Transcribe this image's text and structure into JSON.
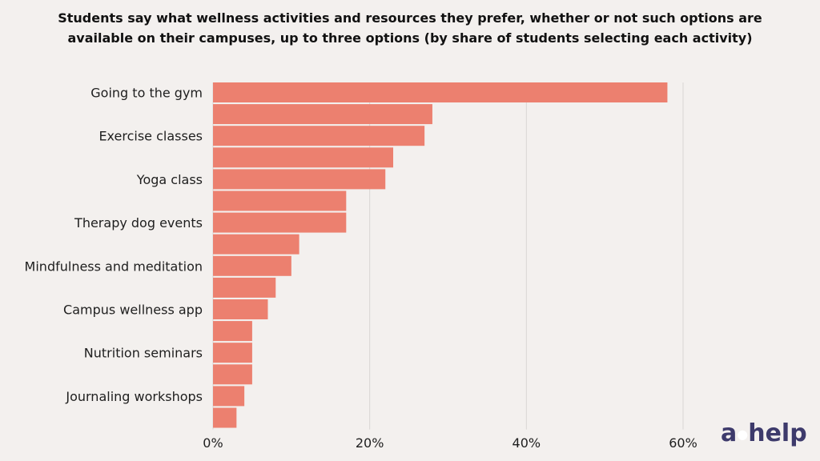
{
  "header": {
    "title_line1": "Students say what wellness activities and resources they prefer, whether or not such options are",
    "title_line2": "available on their campuses, up to three options (by share of students selecting each activity)"
  },
  "brand": {
    "logo_a": "a",
    "logo_help": "help",
    "logo_color": "#3d3a6b"
  },
  "colors": {
    "bar": "#ec806f",
    "grid": "#d9d6d4",
    "text": "#1e1e1e",
    "background": "#f3f0ee"
  },
  "chart_data": {
    "type": "bar",
    "orientation": "horizontal",
    "categories": [
      "Going to the gym",
      "",
      "Exercise classes",
      "",
      "Yoga class",
      "",
      "Therapy dog events",
      "",
      "Mindfulness and meditation",
      "",
      "Campus wellness app",
      "",
      "Nutrition seminars",
      "",
      "Journaling workshops",
      ""
    ],
    "values": [
      58,
      28,
      27,
      23,
      22,
      17,
      17,
      11,
      10,
      8,
      7,
      5,
      5,
      5,
      4,
      3
    ],
    "xlim": [
      0,
      60
    ],
    "xticks": [
      0,
      20,
      40,
      60
    ],
    "xtick_labels": [
      "0%",
      "20%",
      "40%",
      "60%"
    ],
    "grid": "vertical",
    "xlabel": "",
    "ylabel": ""
  }
}
